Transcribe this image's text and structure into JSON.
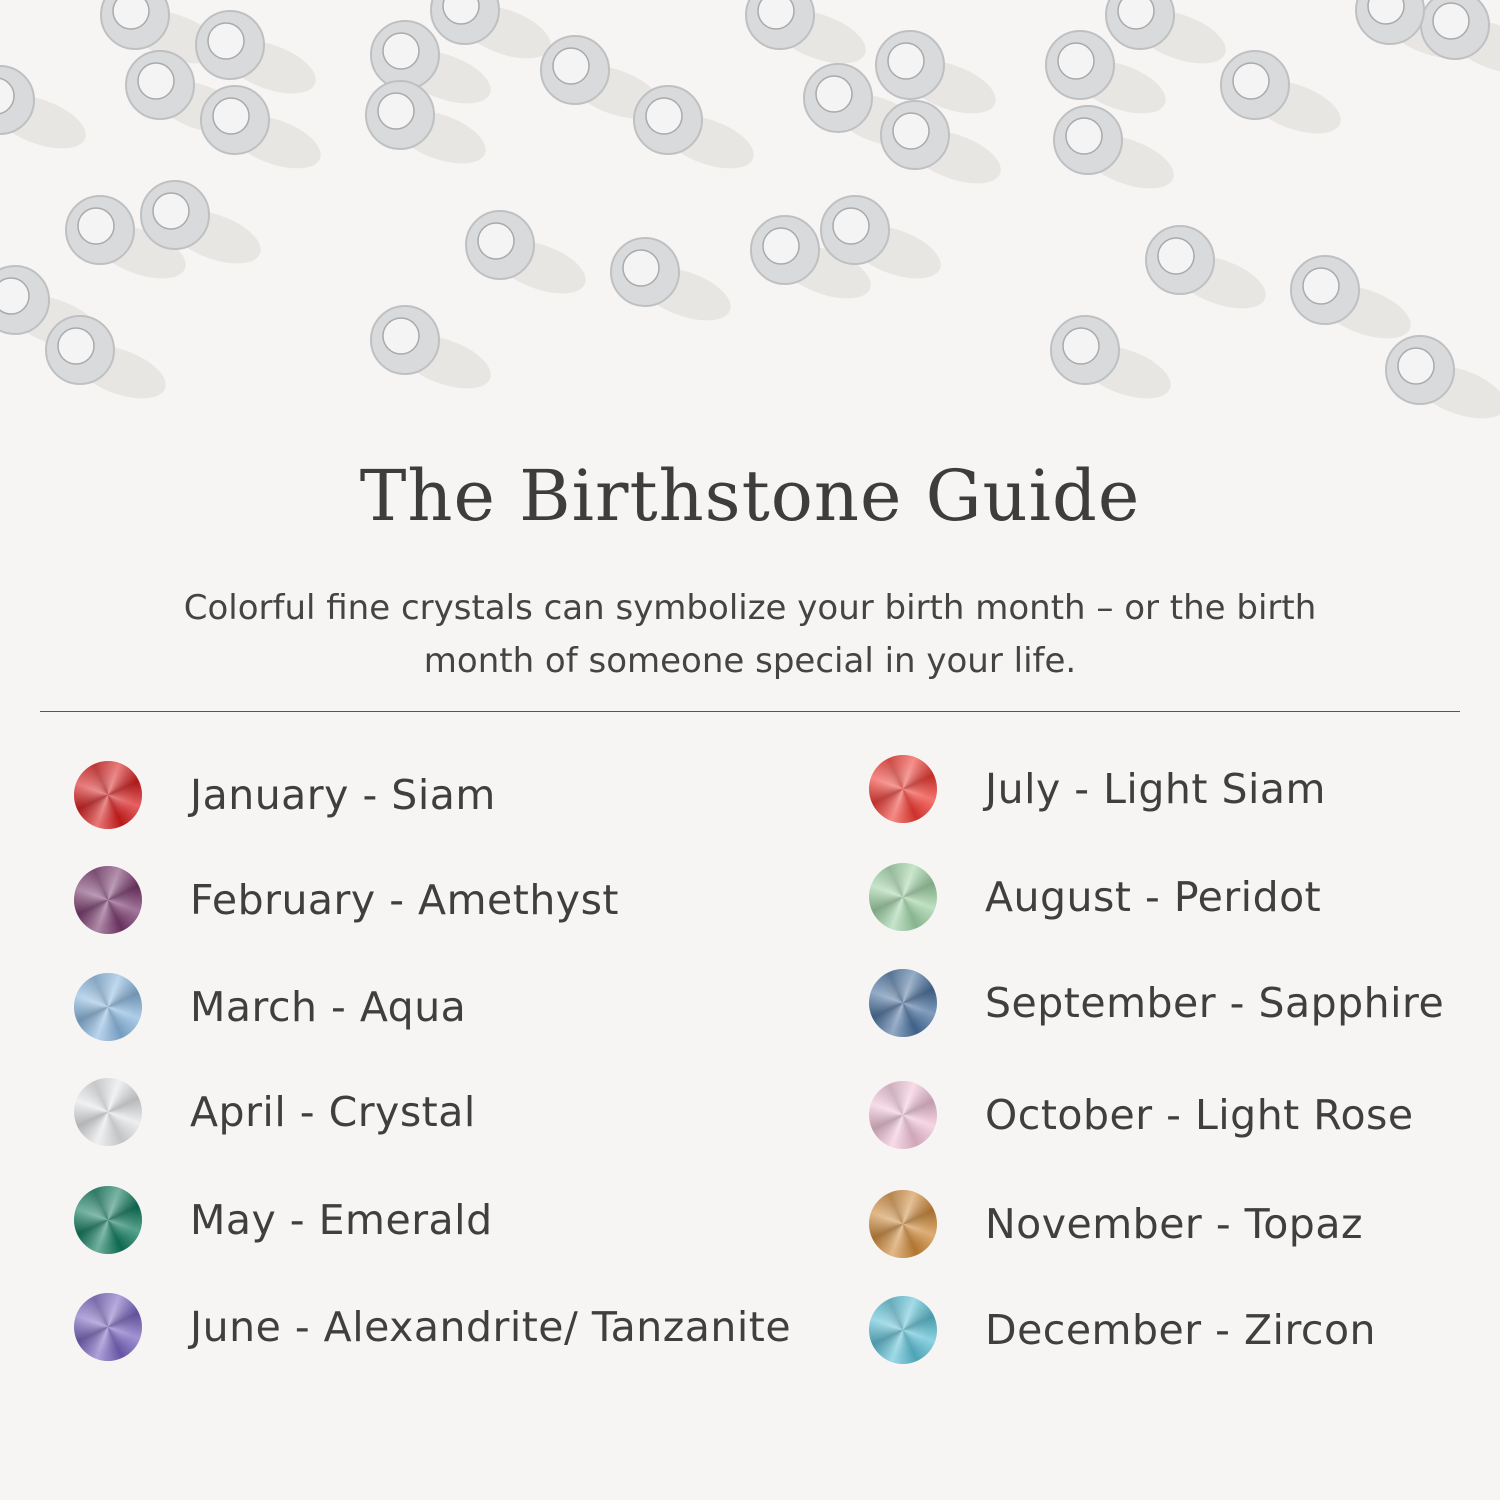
{
  "title": "The Birthstone Guide",
  "subtitle_line1": "Colorful fine crystals can symbolize your birth month – or the birth",
  "subtitle_line2": "month of someone special in your life.",
  "left_column": [
    {
      "label": "January - Siam",
      "color": "#d81e1e"
    },
    {
      "label": "February - Amethyst",
      "color": "#7a3a6e"
    },
    {
      "label": "March - Aqua",
      "color": "#8ab8e0"
    },
    {
      "label": "April - Crystal",
      "color": "#e4e6e8"
    },
    {
      "label": "May - Emerald",
      "color": "#0f7a5c"
    },
    {
      "label": "June - Alexandrite/ Tanzanite",
      "color": "#7864c0"
    }
  ],
  "right_column": [
    {
      "label": "July - Light Siam",
      "color": "#f03a32"
    },
    {
      "label": "August - Peridot",
      "color": "#9fd3a6"
    },
    {
      "label": "September - Sapphire",
      "color": "#4a72a0"
    },
    {
      "label": "October - Light Rose",
      "color": "#f2c3d8"
    },
    {
      "label": "November - Topaz",
      "color": "#cf8a3a"
    },
    {
      "label": "December - Zircon",
      "color": "#5cc0d6"
    }
  ]
}
